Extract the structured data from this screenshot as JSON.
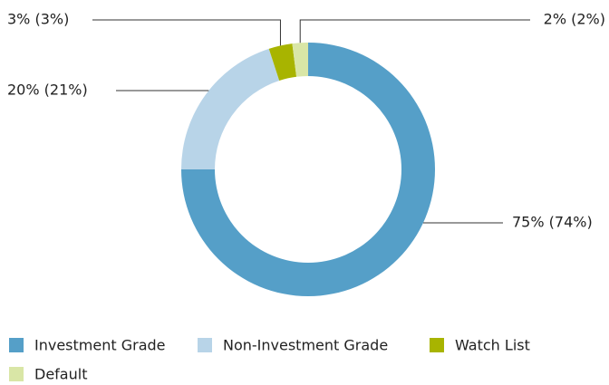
{
  "chart_data": {
    "type": "donut",
    "categories": [
      "Investment Grade",
      "Non-Investment Grade",
      "Watch List",
      "Default"
    ],
    "values": [
      75,
      20,
      3,
      2
    ],
    "value_labels": [
      "75% (74%)",
      "20% (21%)",
      "3% (3%)",
      "2% (2%)"
    ],
    "colors": [
      "#559fc8",
      "#b8d4e8",
      "#a8b400",
      "#d9e6a6"
    ],
    "legend": "bottom"
  }
}
